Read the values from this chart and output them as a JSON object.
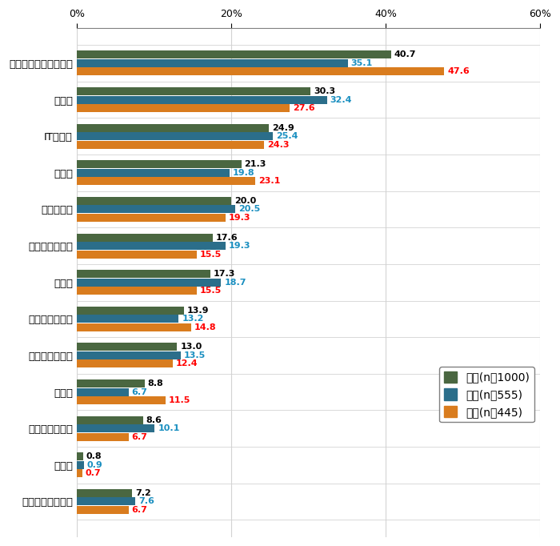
{
  "categories": [
    "コミュニケーション力",
    "創造力",
    "ITスキル",
    "協調性",
    "情報収集力",
    "積極性・主体性",
    "交渉力",
    "チャレンジ精神",
    "リーダーシップ",
    "語学力",
    "デザイン思考力",
    "その他",
    "スキルは要らない"
  ],
  "values_zentai": [
    40.7,
    30.3,
    24.9,
    21.3,
    20.0,
    17.6,
    17.3,
    13.9,
    13.0,
    8.8,
    8.6,
    0.8,
    7.2
  ],
  "values_dansei": [
    35.1,
    32.4,
    25.4,
    19.8,
    20.5,
    19.3,
    18.7,
    13.2,
    13.5,
    6.7,
    10.1,
    0.9,
    7.6
  ],
  "values_josei": [
    47.6,
    27.6,
    24.3,
    23.1,
    19.3,
    15.5,
    15.5,
    14.8,
    12.4,
    11.5,
    6.7,
    0.7,
    6.7
  ],
  "color_zentai": "#4a6741",
  "color_dansei": "#2b6e8a",
  "color_josei": "#d97c1e",
  "label_zentai": "全体(n＝1000)",
  "label_dansei": "男性(n＝555)",
  "label_josei": "女性(n＝445)",
  "color_label_zentai": "black",
  "color_label_dansei": "#1a8fc0",
  "color_label_josei": "red",
  "xlim": [
    0,
    60
  ],
  "xticks": [
    0,
    20,
    40,
    60
  ],
  "xtick_labels": [
    "0%",
    "20%",
    "40%",
    "60%"
  ],
  "bar_height": 0.22,
  "figsize": [
    7.0,
    6.82
  ],
  "dpi": 100,
  "label_fontsize": 9.5,
  "tick_fontsize": 9,
  "value_fontsize": 8,
  "legend_fontsize": 10
}
